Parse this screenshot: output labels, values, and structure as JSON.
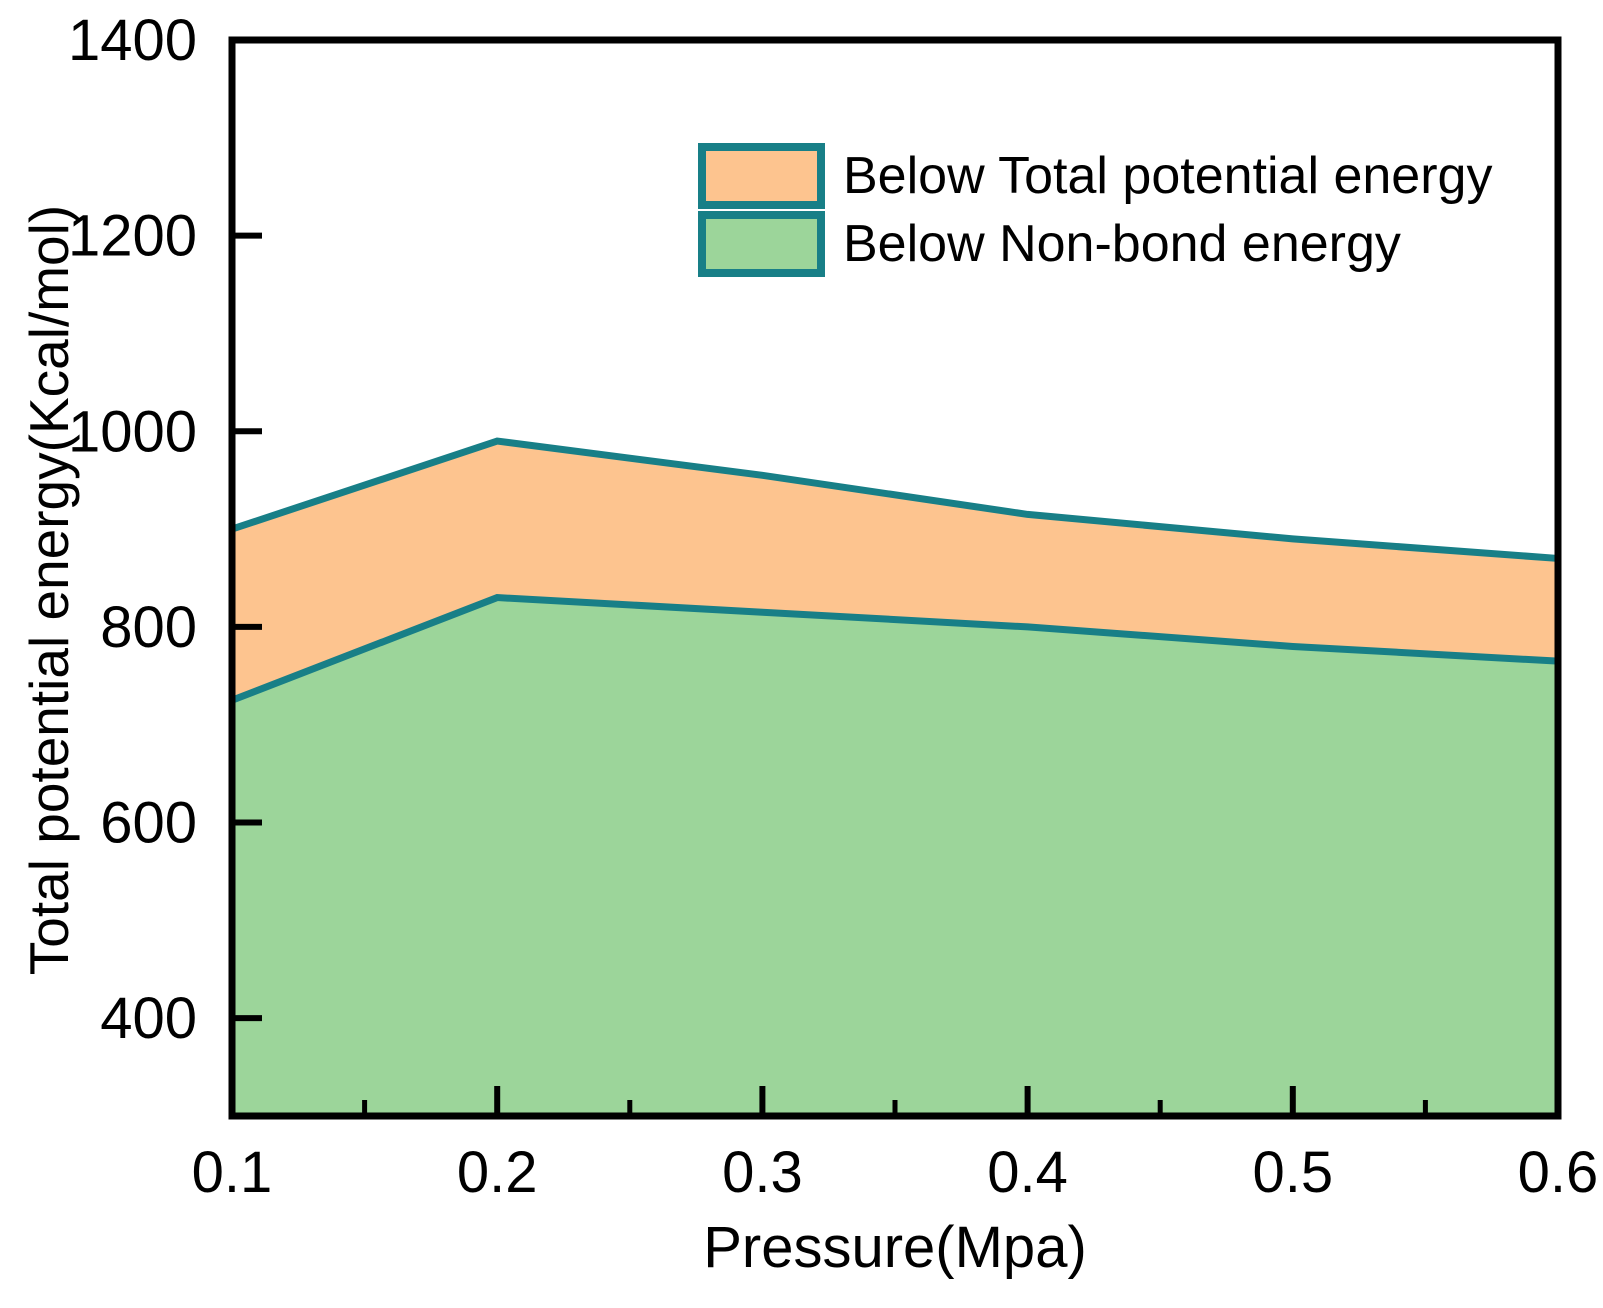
{
  "figure": {
    "background": "#ffffff",
    "frame_color": "#000000",
    "text_color": "#000000"
  },
  "legend": {
    "border_color": "#187F87",
    "items": [
      {
        "label": "Below Total potential energy",
        "fill": "#FDC48F"
      },
      {
        "label": "Below Non-bond energy",
        "fill": "#9CD59A"
      }
    ]
  },
  "chart_data": {
    "type": "area",
    "title": "",
    "xlabel": "Pressure(Mpa)",
    "ylabel": "Total potential energy(Kcal/mol)",
    "x": [
      0.1,
      0.2,
      0.3,
      0.4,
      0.5,
      0.6
    ],
    "series": [
      {
        "name": "Below Total potential energy",
        "values": [
          900,
          990,
          955,
          915,
          890,
          870
        ],
        "fill": "#FDC48F",
        "line_color": "#187F87"
      },
      {
        "name": "Below Non-bond energy",
        "values": [
          725,
          830,
          815,
          800,
          780,
          765
        ],
        "fill": "#9CD59A",
        "line_color": "#187F87"
      }
    ],
    "xlim": [
      0.1,
      0.6
    ],
    "ylim": [
      300,
      1400
    ],
    "x_ticks": [
      0.1,
      0.2,
      0.3,
      0.4,
      0.5,
      0.6
    ],
    "x_minor_ticks": [
      0.15,
      0.25,
      0.35,
      0.45,
      0.55
    ],
    "y_ticks": [
      400,
      600,
      800,
      1000,
      1200,
      1400
    ],
    "grid": false,
    "legend_position": "upper center-right inside plot"
  }
}
